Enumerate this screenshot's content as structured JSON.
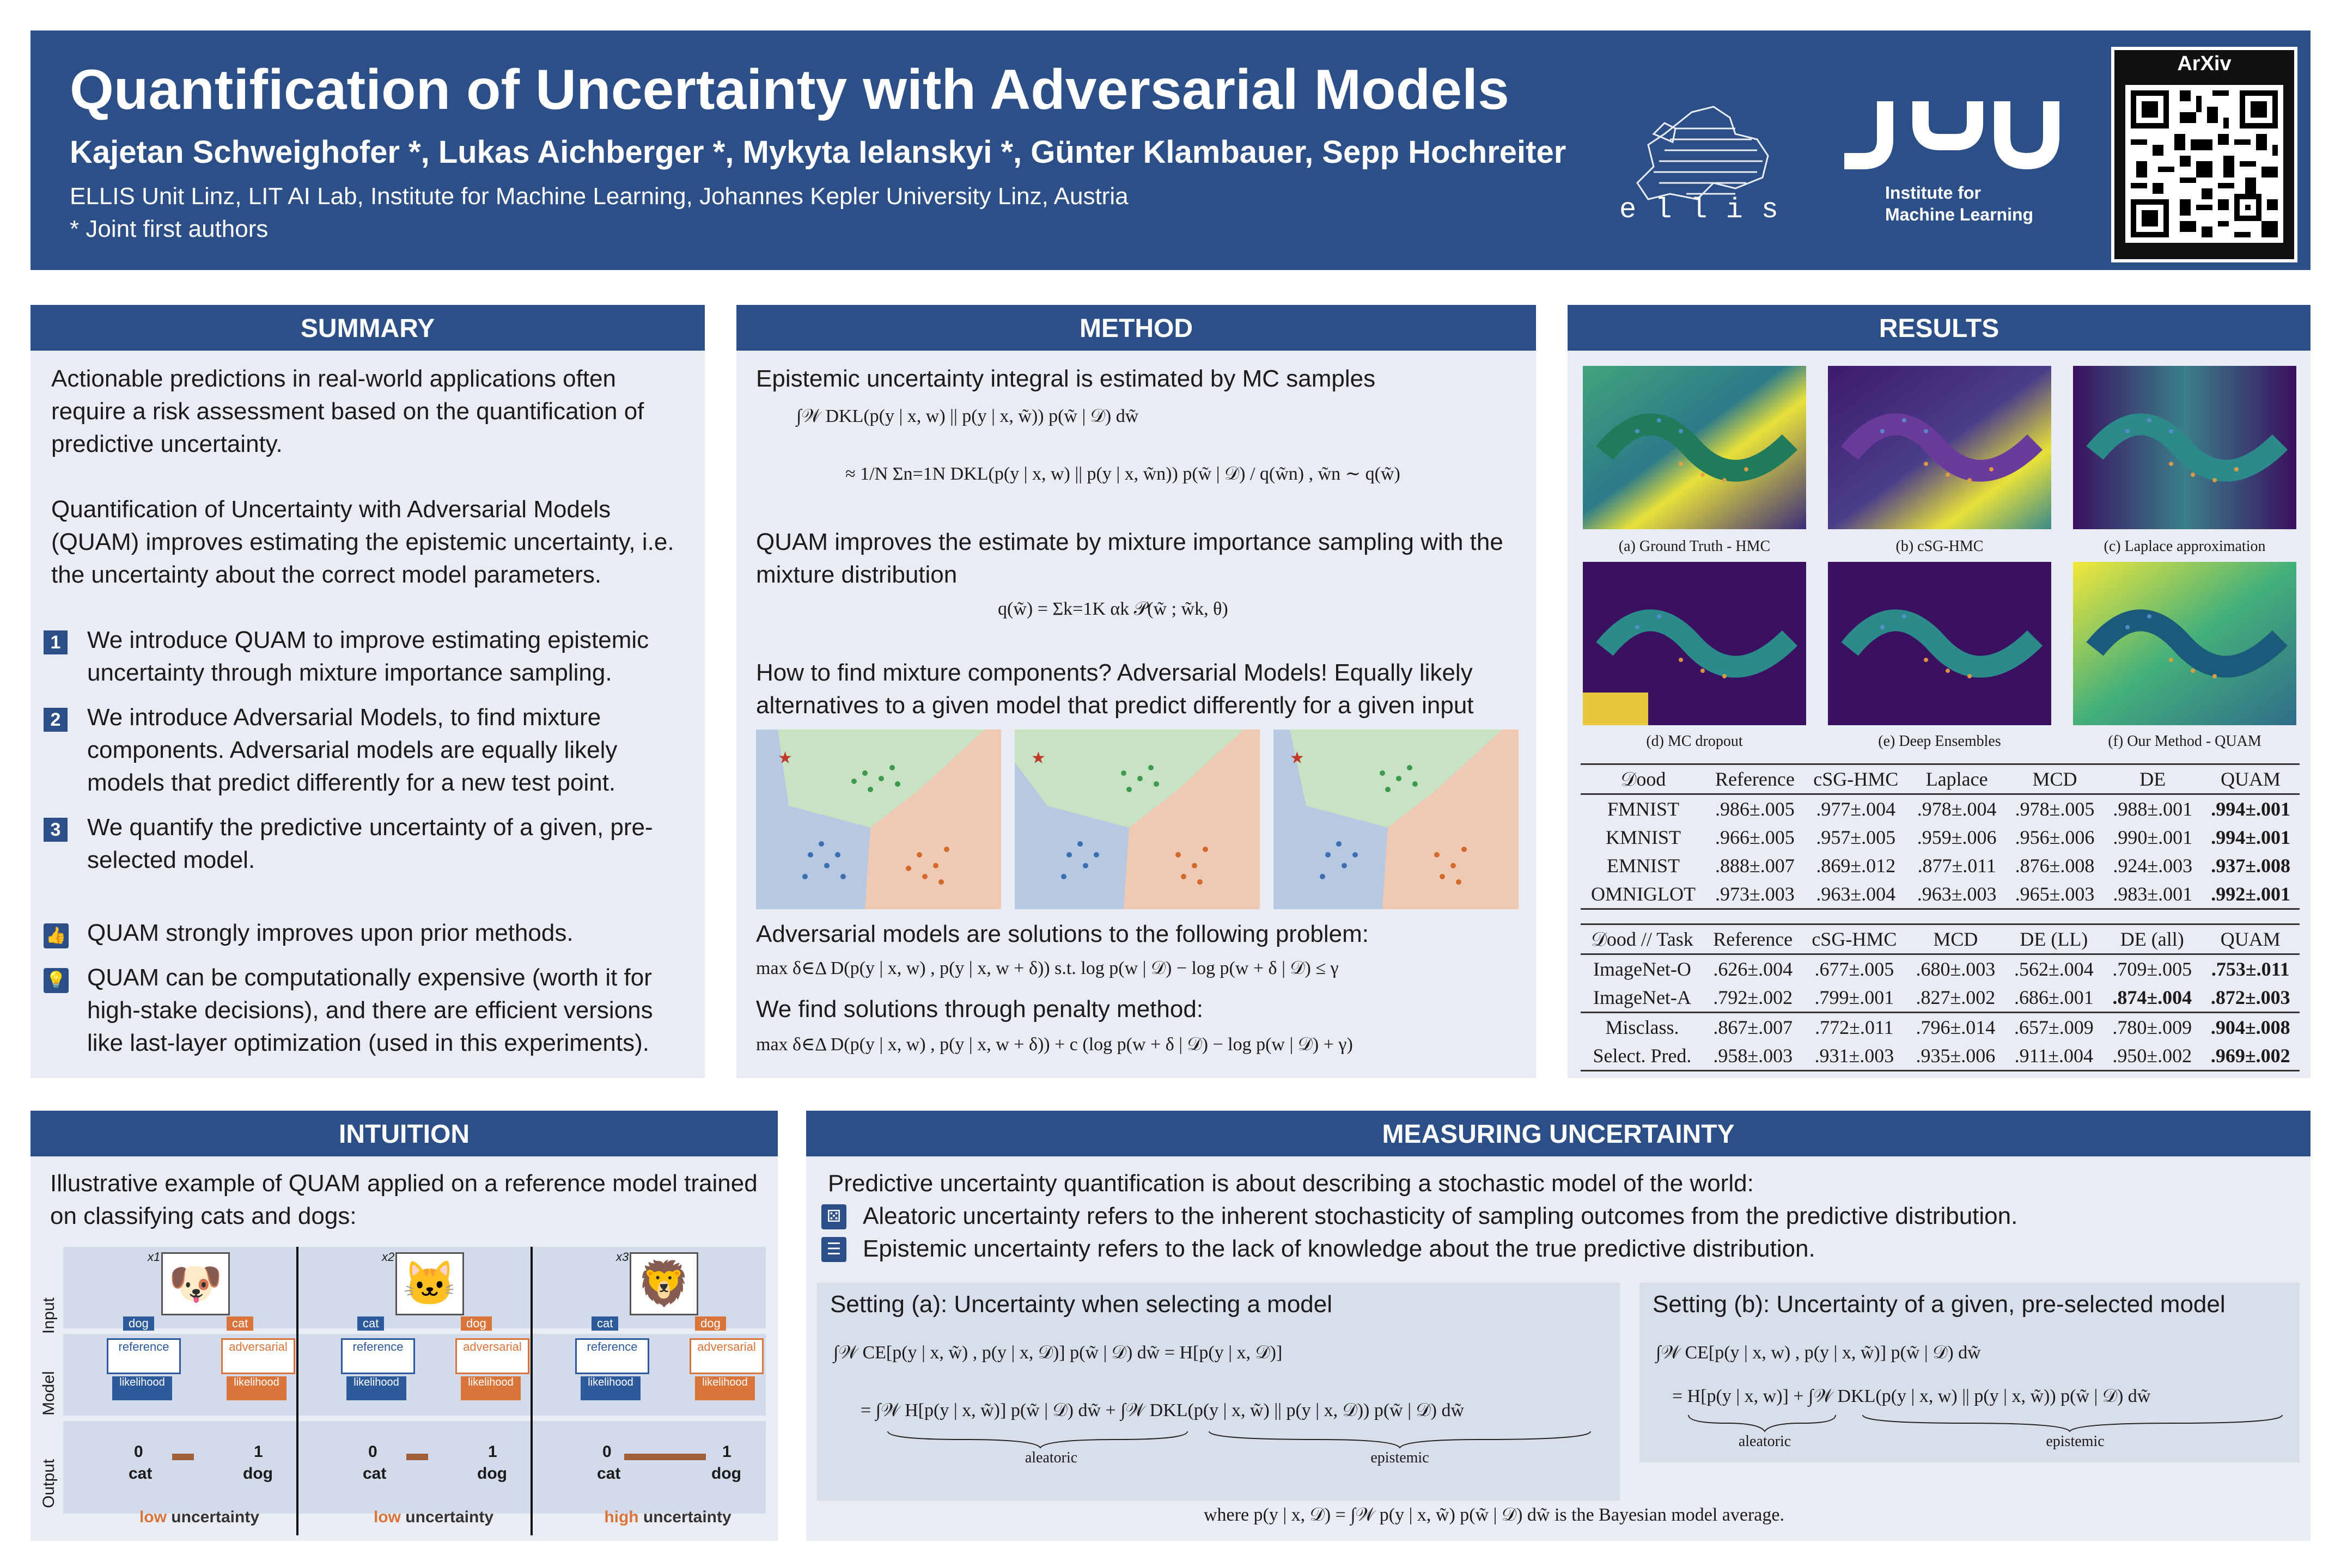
{
  "header": {
    "title": "Quantification of Uncertainty with Adversarial Models",
    "authors": "Kajetan Schweighofer *, Lukas Aichberger *, Mykyta Ielanskyi *, Günter Klambauer, Sepp Hochreiter",
    "affiliation": "ELLIS Unit Linz, LIT AI Lab, Institute for Machine Learning, Johannes Kepler University Linz, Austria",
    "joint_note": "* Joint first authors",
    "ellis_label": "ellis",
    "jku_label": "JKU",
    "jku_sub1": "Institute for",
    "jku_sub2": "Machine Learning",
    "qr_label": "ArXiv"
  },
  "summary": {
    "heading": "SUMMARY",
    "intro": "Actionable predictions in real-world applications often require a risk assessment based on the quantification of predictive uncertainty.",
    "quam_desc": "Quantification of Uncertainty with Adversarial Models (QUAM) improves estimating the epistemic uncertainty, i.e. the uncertainty about the correct model parameters.",
    "items": [
      {
        "num": "1",
        "text": "We introduce QUAM to improve estimating epistemic uncertainty through mixture importance sampling."
      },
      {
        "num": "2",
        "text": "We introduce Adversarial Models, to find mixture components. Adversarial models are equally likely models that predict differently for a new test point."
      },
      {
        "num": "3",
        "text": "We quantify the predictive uncertainty of a given, pre-selected model."
      }
    ],
    "points": [
      {
        "icon": "thumbs-up-icon",
        "text": "QUAM strongly improves upon prior methods."
      },
      {
        "icon": "bulb-icon",
        "text": "QUAM can be computationally expensive (worth it for high-stake decisions), and there are efficient versions like last-layer optimization (used in this experiments)."
      }
    ]
  },
  "method": {
    "heading": "METHOD",
    "line1": "Epistemic uncertainty integral is estimated by MC samples",
    "eq1": "∫𝒲 DKL(p(y | x, w) || p(y | x, w̃)) p(w̃ | 𝒟) dw̃",
    "eq2": "≈ 1/N Σn=1N DKL(p(y | x, w) || p(y | x, w̃n)) p(w̃ | 𝒟) / q(w̃n) ,   w̃n ∼ q(w̃)",
    "line2": "QUAM improves the estimate by mixture importance sampling with the mixture distribution",
    "eq3": "q(w̃) = Σk=1K αk 𝒫(w̃ ; w̃k, θ)",
    "line3": "How to find mixture components? Adversarial Models! Equally likely alternatives to a given model that predict differently for a given input",
    "line4": "Adversarial models are solutions to the following problem:",
    "eq4": "max δ∈Δ  D(p(y | x, w) , p(y | x, w + δ))     s.t.  log p(w | 𝒟) − log p(w + δ | 𝒟) ≤ γ",
    "line5": "We find solutions through penalty method:",
    "eq5": "max δ∈Δ  D(p(y | x, w) , p(y | x, w + δ)) + c (log p(w + δ | 𝒟) − log p(w | 𝒟) + γ)"
  },
  "results": {
    "heading": "RESULTS",
    "captions": [
      "(a) Ground Truth - HMC",
      "(b) cSG-HMC",
      "(c) Laplace approximation",
      "(d) MC dropout",
      "(e) Deep Ensembles",
      "(f) Our Method - QUAM"
    ],
    "table1": {
      "headers": [
        "𝒟ood",
        "Reference",
        "cSG-HMC",
        "Laplace",
        "MCD",
        "DE",
        "QUAM"
      ],
      "rows": [
        [
          "FMNIST",
          ".986±.005",
          ".977±.004",
          ".978±.004",
          ".978±.005",
          ".988±.001",
          ".994±.001"
        ],
        [
          "KMNIST",
          ".966±.005",
          ".957±.005",
          ".959±.006",
          ".956±.006",
          ".990±.001",
          ".994±.001"
        ],
        [
          "EMNIST",
          ".888±.007",
          ".869±.012",
          ".877±.011",
          ".876±.008",
          ".924±.003",
          ".937±.008"
        ],
        [
          "OMNIGLOT",
          ".973±.003",
          ".963±.004",
          ".963±.003",
          ".965±.003",
          ".983±.001",
          ".992±.001"
        ]
      ]
    },
    "table2": {
      "headers": [
        "𝒟ood // Task",
        "Reference",
        "cSG-HMC",
        "MCD",
        "DE (LL)",
        "DE (all)",
        "QUAM"
      ],
      "rows": [
        [
          "ImageNet-O",
          ".626±.004",
          ".677±.005",
          ".680±.003",
          ".562±.004",
          ".709±.005",
          ".753±.011"
        ],
        [
          "ImageNet-A",
          ".792±.002",
          ".799±.001",
          ".827±.002",
          ".686±.001",
          ".874±.004",
          ".872±.003"
        ],
        [
          "Misclass.",
          ".867±.007",
          ".772±.011",
          ".796±.014",
          ".657±.009",
          ".780±.009",
          ".904±.008"
        ],
        [
          "Select. Pred.",
          ".958±.003",
          ".931±.003",
          ".935±.006",
          ".911±.004",
          ".950±.002",
          ".969±.002"
        ]
      ]
    }
  },
  "intuition": {
    "heading": "INTUITION",
    "intro": "Illustrative example of QUAM applied on a reference model trained on classifying cats and dogs:",
    "row_labels": [
      "Input",
      "Model",
      "Output"
    ],
    "columns": [
      {
        "x": "x1",
        "animal": "dog",
        "left": "dog",
        "right": "cat",
        "verdict_a": "low",
        "verdict_b": " uncertainty"
      },
      {
        "x": "x2",
        "animal": "cat",
        "left": "cat",
        "right": "dog",
        "verdict_a": "low",
        "verdict_b": " uncertainty"
      },
      {
        "x": "x3",
        "animal": "lion",
        "left": "cat",
        "right": "dog",
        "verdict_a": "high",
        "verdict_b": " uncertainty"
      }
    ],
    "ref_label": "reference",
    "adv_label": "adversarial",
    "lik_label": "likelihood",
    "zero": "0",
    "one": "1",
    "cat": "cat",
    "dog": "dog"
  },
  "measuring": {
    "heading": "MEASURING UNCERTAINTY",
    "line1": "Predictive uncertainty quantification is about describing a stochastic model of the world:",
    "aleatoric": "Aleatoric uncertainty refers to the inherent stochasticity of sampling outcomes from the predictive distribution.",
    "epistemic": "Epistemic uncertainty refers to the lack of knowledge about the true predictive distribution.",
    "setting_a": "Setting (a): Uncertainty when selecting a model",
    "setting_b": "Setting (b): Uncertainty of a given, pre-selected model",
    "eq_a1": "∫𝒲 CE[p(y | x, w̃) , p(y | x, 𝒟)] p(w̃ | 𝒟) dw̃ = H[p(y | x, 𝒟)]",
    "eq_a2": "= ∫𝒲 H[p(y | x, w̃)] p(w̃ | 𝒟) dw̃ + ∫𝒲 DKL(p(y | x, w̃) || p(y | x, 𝒟)) p(w̃ | 𝒟) dw̃",
    "eq_b1": "∫𝒲 CE[p(y | x, w) , p(y | x, w̃)] p(w̃ | 𝒟) dw̃",
    "eq_b2": "= H[p(y | x, w)] + ∫𝒲 DKL(p(y | x, w) || p(y | x, w̃)) p(w̃ | 𝒟) dw̃",
    "aleatoric_label": "aleatoric",
    "epistemic_label": "epistemic",
    "where": "where  p(y | x, 𝒟) = ∫𝒲 p(y | x, w̃) p(w̃ | 𝒟) dw̃  is the Bayesian model average."
  }
}
